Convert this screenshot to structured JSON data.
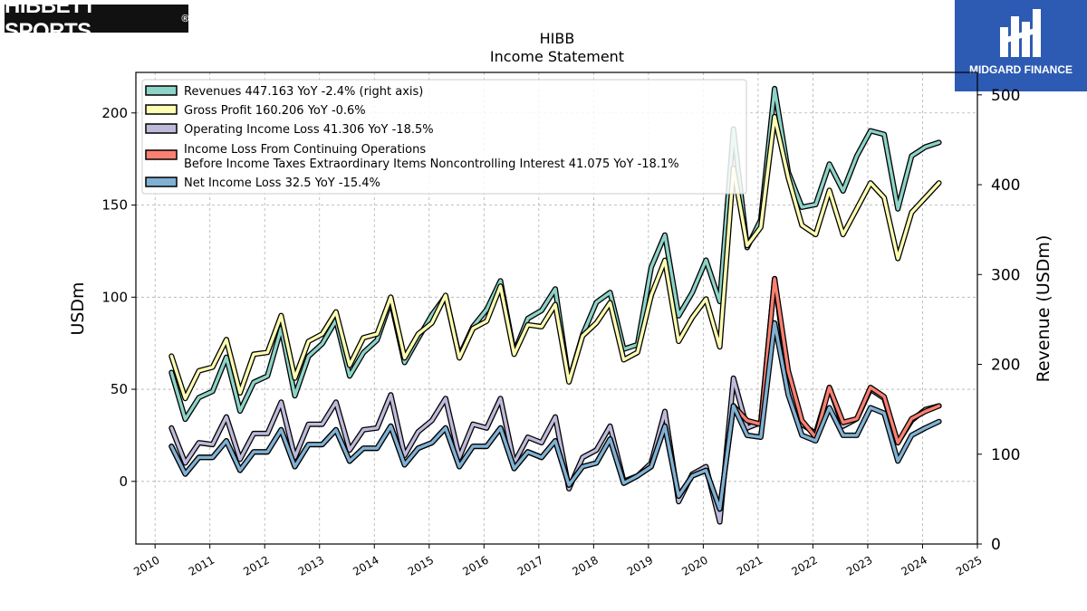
{
  "logos": {
    "left_text": "HIBBETT SPORTS",
    "left_mark": "®",
    "right_text": "MIDGARD FINANCE"
  },
  "chart_data": {
    "type": "line",
    "title": "HIBB",
    "subtitle": "Income Statement",
    "ylabel": "USDm",
    "ylabel_right": "Revenue (USDm)",
    "ylim": [
      -34,
      222
    ],
    "ylim_right": [
      0,
      525
    ],
    "yticks": [
      0,
      50,
      100,
      150,
      200
    ],
    "yticks_right": [
      0,
      100,
      200,
      300,
      400,
      500
    ],
    "xlim": [
      2009.65,
      2025.0
    ],
    "xticks": [
      2010,
      2011,
      2012,
      2013,
      2014,
      2015,
      2016,
      2017,
      2018,
      2019,
      2020,
      2021,
      2022,
      2023,
      2024,
      2025
    ],
    "grid": true,
    "legend_position": "upper-left",
    "x": [
      2010.3,
      2010.55,
      2010.8,
      2011.05,
      2011.3,
      2011.55,
      2011.8,
      2012.05,
      2012.3,
      2012.55,
      2012.8,
      2013.05,
      2013.3,
      2013.55,
      2013.8,
      2014.05,
      2014.3,
      2014.55,
      2014.8,
      2015.05,
      2015.3,
      2015.55,
      2015.8,
      2016.05,
      2016.3,
      2016.55,
      2016.8,
      2017.05,
      2017.3,
      2017.55,
      2017.8,
      2018.05,
      2018.3,
      2018.55,
      2018.8,
      2019.05,
      2019.3,
      2019.55,
      2019.8,
      2020.05,
      2020.3,
      2020.55,
      2020.8,
      2021.05,
      2021.3,
      2021.55,
      2021.8,
      2022.05,
      2022.3,
      2022.55,
      2022.8,
      2023.05,
      2023.3,
      2023.55,
      2023.8,
      2024.05,
      2024.3
    ],
    "series": [
      {
        "name": "Revenues  447.163 YoY -2.4% (right axis)",
        "axis": "right",
        "color": "#8dd3c7",
        "values": [
          191,
          139,
          163,
          170,
          208,
          148,
          180,
          187,
          240,
          165,
          209,
          223,
          249,
          187,
          213,
          227,
          271,
          202,
          229,
          255,
          276,
          209,
          242,
          261,
          293,
          213,
          251,
          260,
          284,
          181,
          233,
          269,
          280,
          217,
          222,
          308,
          344,
          254,
          280,
          316,
          270,
          462,
          330,
          361,
          507,
          414,
          375,
          378,
          423,
          393,
          432,
          460,
          456,
          373,
          432,
          442,
          447
        ]
      },
      {
        "name": "Gross Profit  160.206 YoY -0.6%",
        "axis": "left",
        "color": "#ffffb3",
        "values": [
          68,
          45,
          60,
          62,
          77,
          48,
          69,
          70,
          90,
          56,
          76,
          80,
          92,
          63,
          78,
          80,
          100,
          67,
          80,
          86,
          101,
          67,
          83,
          87,
          106,
          69,
          85,
          84,
          96,
          54,
          79,
          86,
          97,
          66,
          70,
          101,
          120,
          76,
          89,
          99,
          73,
          170,
          128,
          138,
          198,
          165,
          139,
          134,
          158,
          134,
          148,
          162,
          154,
          121,
          146,
          154,
          162
        ]
      },
      {
        "name": "Operating Income Loss  41.306 YoY -18.5%",
        "axis": "left",
        "color": "#bebada",
        "values": [
          29,
          10,
          21,
          20,
          35,
          12,
          26,
          26,
          43,
          13,
          31,
          31,
          43,
          17,
          28,
          29,
          47,
          14,
          27,
          33,
          45,
          13,
          31,
          29,
          45,
          10,
          24,
          21,
          35,
          -4,
          13,
          17,
          30,
          0,
          3,
          10,
          38,
          -11,
          4,
          8,
          -22,
          56,
          29,
          32,
          110,
          55,
          31,
          26,
          51,
          30,
          34,
          50,
          45,
          21,
          33,
          39,
          41
        ]
      },
      {
        "name": "Income Loss From Continuing Operations\nBefore Income Taxes Extraordinary Items Noncontrolling Interest  41.075 YoY -18.1%",
        "axis": "left",
        "color": "#fb8072",
        "values": [
          19,
          4,
          13,
          13,
          22,
          6,
          16,
          16,
          28,
          8,
          20,
          20,
          28,
          11,
          18,
          18,
          30,
          9,
          18,
          21,
          29,
          8,
          19,
          19,
          29,
          7,
          16,
          13,
          22,
          -2,
          8,
          10,
          23,
          -1,
          3,
          8,
          30,
          -8,
          3,
          6,
          -15,
          41,
          33,
          31,
          110,
          60,
          33,
          24,
          51,
          32,
          34,
          51,
          46,
          21,
          34,
          38,
          41
        ]
      },
      {
        "name": "Net Income Loss  32.5 YoY -15.4%",
        "axis": "left",
        "color": "#80b1d3",
        "values": [
          19,
          4,
          13,
          13,
          22,
          6,
          16,
          16,
          28,
          8,
          20,
          20,
          28,
          11,
          18,
          18,
          30,
          9,
          18,
          21,
          29,
          8,
          19,
          19,
          29,
          7,
          16,
          13,
          22,
          -2,
          8,
          10,
          23,
          -1,
          3,
          8,
          30,
          -8,
          3,
          6,
          -15,
          41,
          25,
          24,
          86,
          47,
          25,
          22,
          40,
          25,
          25,
          40,
          37,
          11,
          25,
          29,
          32.5
        ]
      }
    ]
  }
}
